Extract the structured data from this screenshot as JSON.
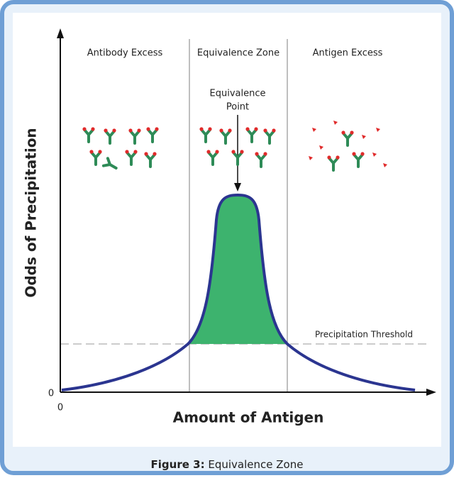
{
  "zones": [
    "Antibody Excess",
    "Equivalence Zone",
    "Antigen Excess"
  ],
  "annotations": {
    "equivalence_point": [
      "Equivalence",
      "Point"
    ],
    "threshold": "Precipitation Threshold"
  },
  "axes": {
    "y_label": "Odds of Precipitation",
    "x_label": "Amount of Antigen",
    "y_origin": "0",
    "x_origin": "0"
  },
  "caption": {
    "label": "Figure 3:",
    "text": "Equivalence Zone"
  }
}
